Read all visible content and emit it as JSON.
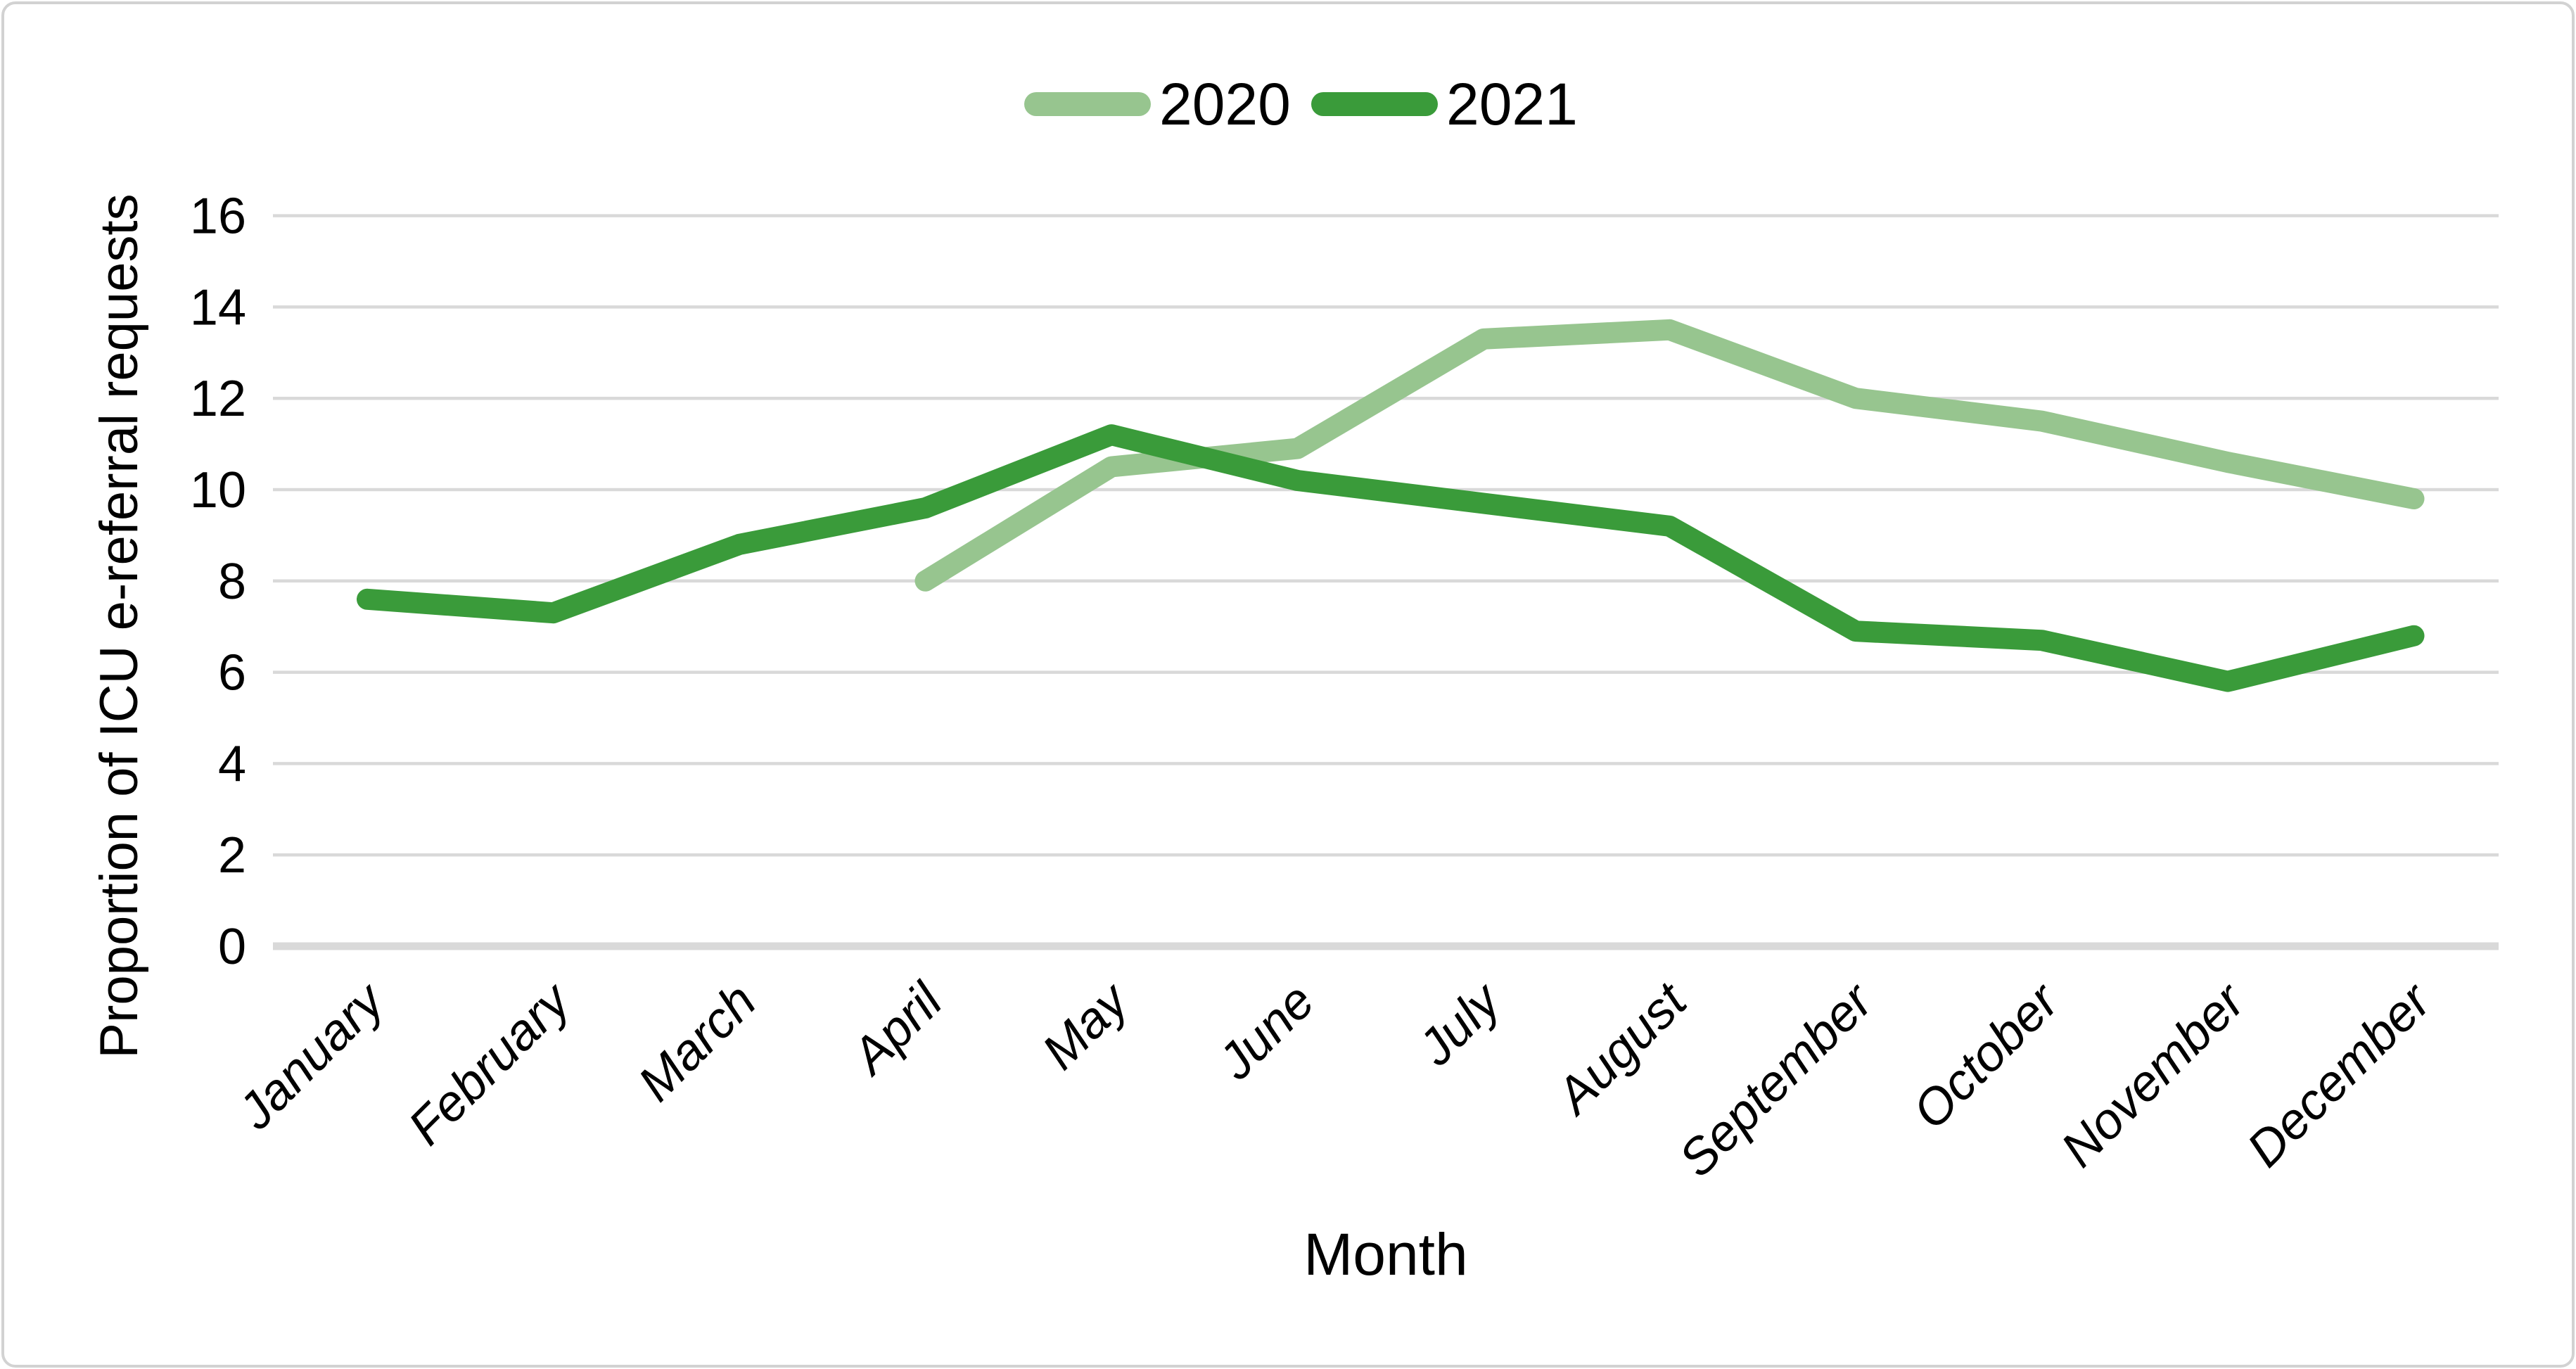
{
  "chart_data": {
    "type": "line",
    "title": "",
    "categories": [
      "January",
      "February",
      "March",
      "April",
      "May",
      "June",
      "July",
      "August",
      "September",
      "October",
      "November",
      "December"
    ],
    "xlabel": "Month",
    "ylabel": "Proportion of ICU e-referral requests",
    "ylim": [
      0,
      16
    ],
    "yticks": [
      0,
      2,
      4,
      6,
      8,
      10,
      12,
      14,
      16
    ],
    "grid": true,
    "legend_position": "top-center",
    "series": [
      {
        "name": "2020",
        "color": "#97C58F",
        "values": [
          null,
          null,
          null,
          8.0,
          10.5,
          10.9,
          13.3,
          13.5,
          12.0,
          11.5,
          10.6,
          9.8
        ]
      },
      {
        "name": "2021",
        "color": "#3A9B3A",
        "values": [
          7.6,
          7.3,
          8.8,
          9.6,
          11.2,
          10.2,
          9.7,
          9.2,
          6.9,
          6.7,
          5.8,
          6.8
        ]
      }
    ]
  },
  "styles": {
    "grid_color": "#D9D9D9",
    "axis_line_color": "#D9D9D9",
    "frame_border_color": "#D2D2D2",
    "ylabel_color": "#FF0000",
    "text_color": "#000000",
    "background": "#FFFFFF"
  }
}
